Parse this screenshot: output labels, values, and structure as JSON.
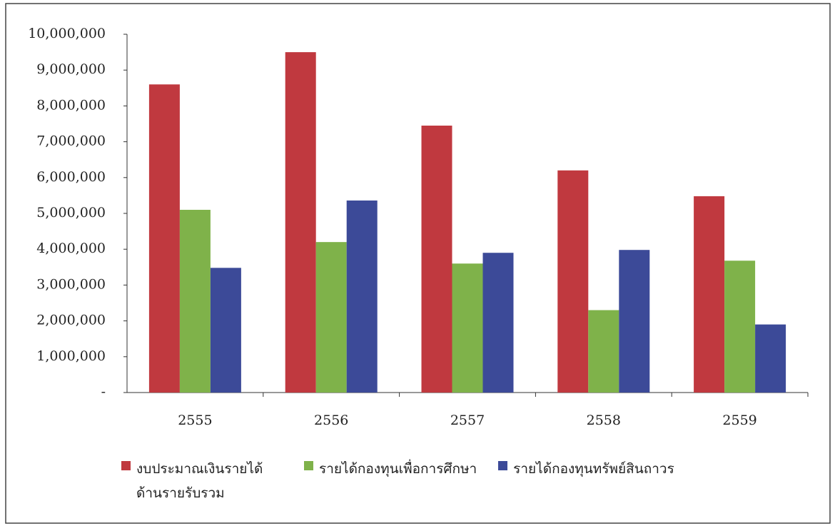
{
  "chart_data": {
    "type": "bar",
    "categories": [
      "2555",
      "2556",
      "2557",
      "2558",
      "2559"
    ],
    "series": [
      {
        "name": "งบประมาณเงินรายได้ ด้านรายรับรวม",
        "color": "#c0393f",
        "values": [
          8600000,
          9500000,
          7450000,
          6200000,
          5480000
        ]
      },
      {
        "name": "รายได้กองทุนเพื่อการศึกษา",
        "color": "#7fb24a",
        "values": [
          5100000,
          4200000,
          3600000,
          2300000,
          3680000
        ]
      },
      {
        "name": "รายได้กองทุนทรัพย์สินถาวร",
        "color": "#3c4a98",
        "values": [
          3480000,
          5360000,
          3900000,
          3980000,
          1900000
        ]
      }
    ],
    "ylim": [
      0,
      10000000
    ],
    "yticks": [
      {
        "value": 0,
        "label": "-"
      },
      {
        "value": 1000000,
        "label": "1,000,000"
      },
      {
        "value": 2000000,
        "label": "2,000,000"
      },
      {
        "value": 3000000,
        "label": "3,000,000"
      },
      {
        "value": 4000000,
        "label": "4,000,000"
      },
      {
        "value": 5000000,
        "label": "5,000,000"
      },
      {
        "value": 6000000,
        "label": "6,000,000"
      },
      {
        "value": 7000000,
        "label": "7,000,000"
      },
      {
        "value": 8000000,
        "label": "8,000,000"
      },
      {
        "value": 9000000,
        "label": "9,000,000"
      },
      {
        "value": 10000000,
        "label": "10,000,000"
      }
    ],
    "grid": false,
    "legend": "bottom"
  }
}
